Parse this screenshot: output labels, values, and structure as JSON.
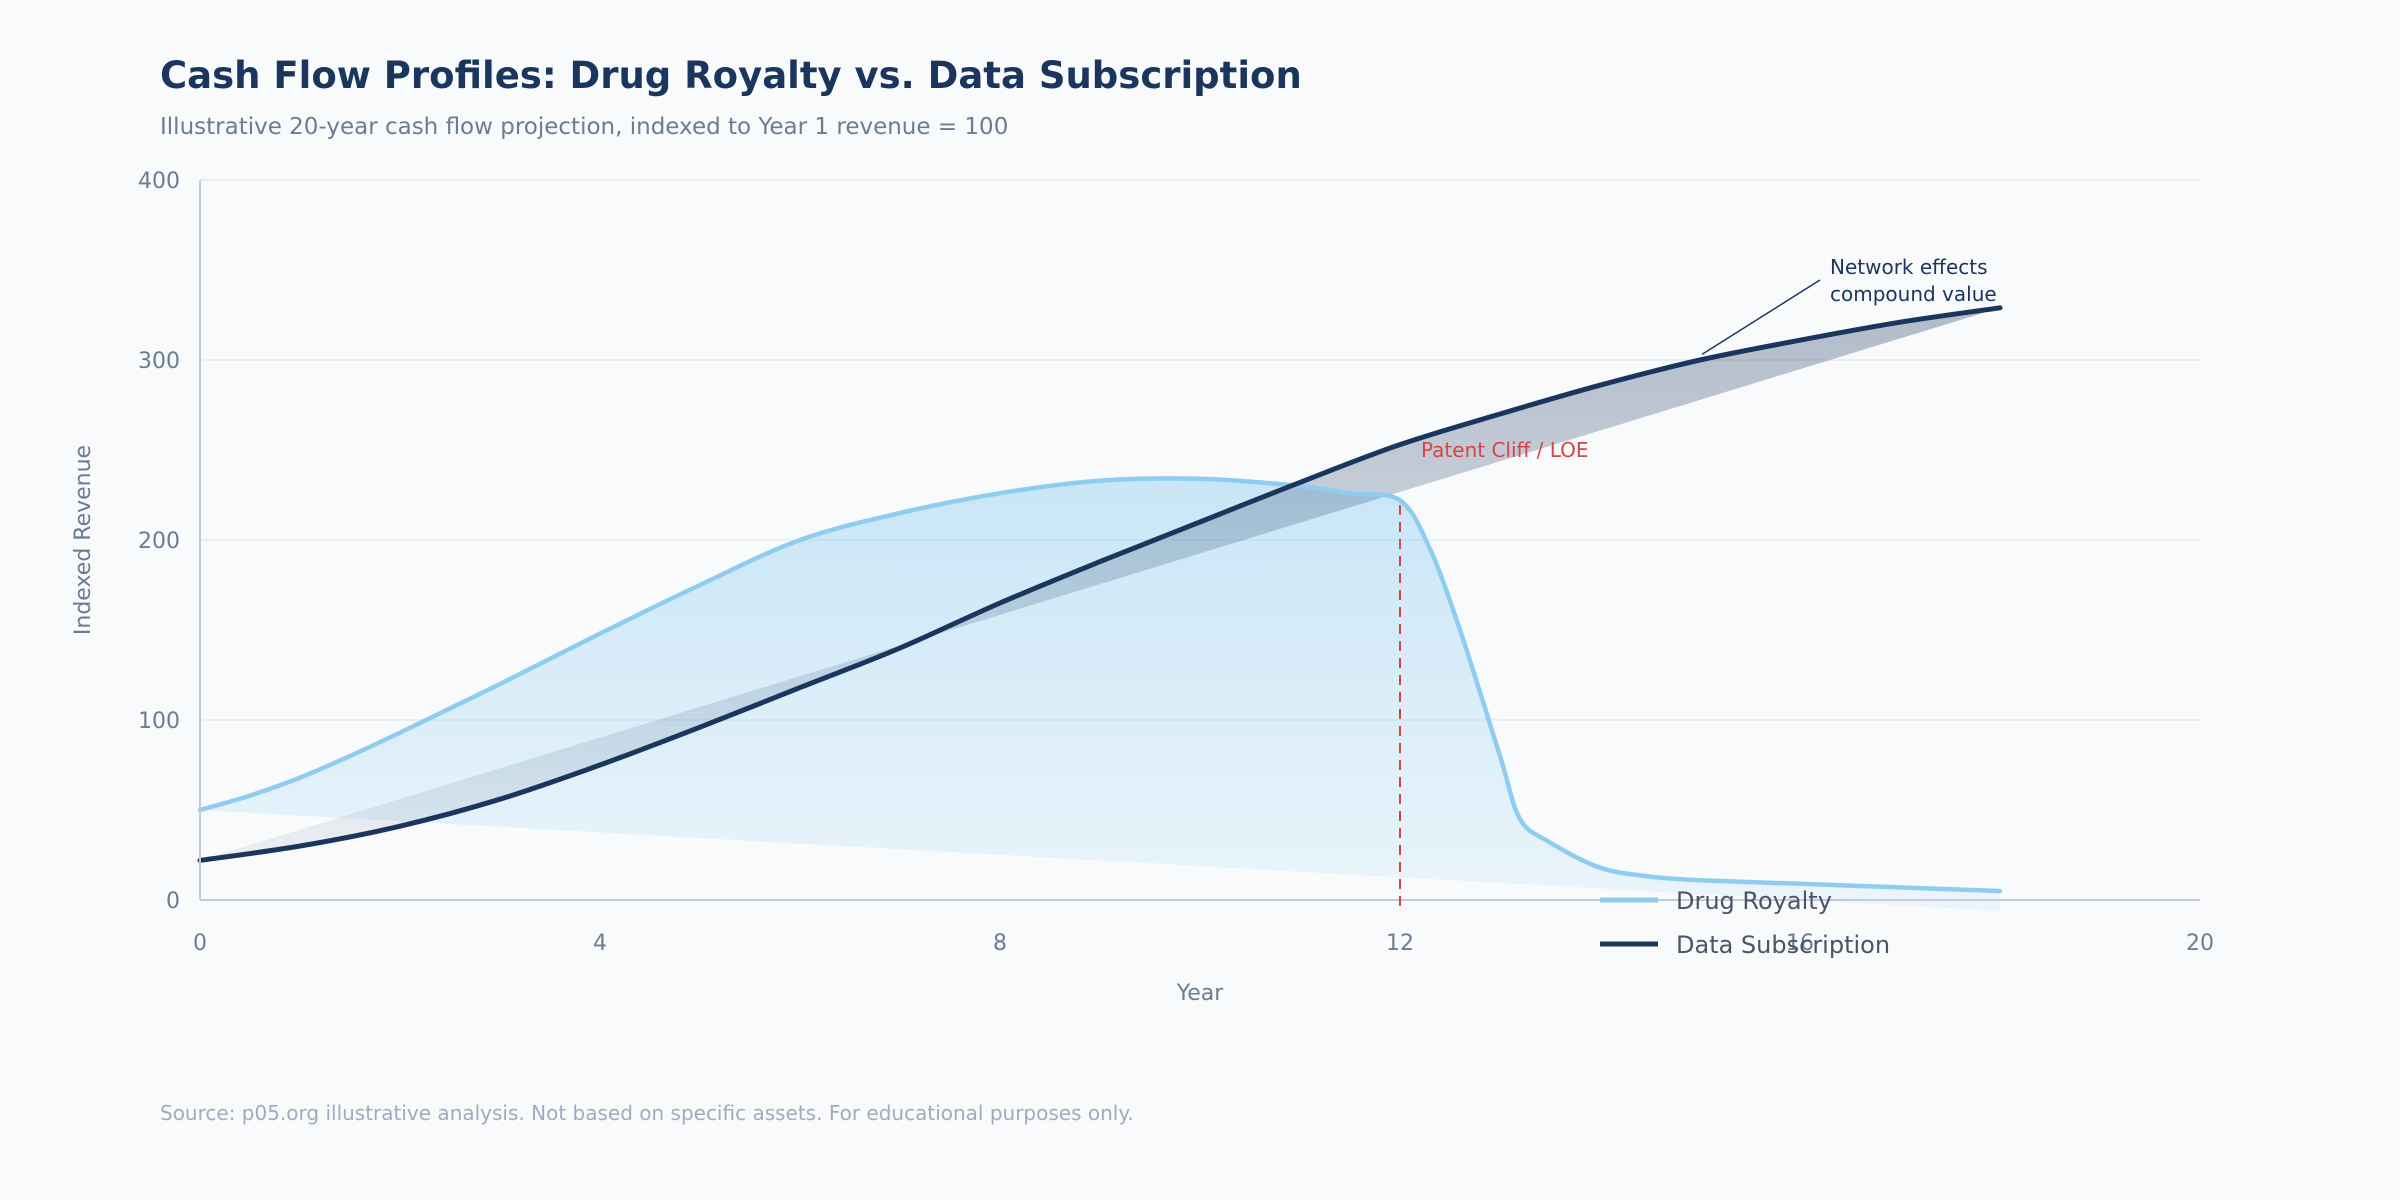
{
  "colors": {
    "royalty": "#8fcdf0",
    "subscription": "#1b365d",
    "cliff": "#d64545",
    "grid": "#e6eaf0",
    "axis": "#c3cbd6"
  },
  "header": {
    "title": "Cash Flow Profiles: Drug Royalty vs. Data Subscription",
    "subtitle": "Illustrative 20-year cash flow projection, indexed to Year 1 revenue = 100"
  },
  "footer": {
    "source": "Source: p05.org illustrative analysis. Not based on specific assets. For educational purposes only."
  },
  "chart_data": {
    "type": "line",
    "title": "Cash Flow Profiles: Drug Royalty vs. Data Subscription",
    "subtitle": "Illustrative 20-year cash flow projection, indexed to Year 1 revenue = 100",
    "xlabel": "Year",
    "ylabel": "Indexed Revenue",
    "xlim": [
      0,
      20
    ],
    "ylim": [
      0,
      400
    ],
    "xticks": [
      0,
      4,
      8,
      12,
      16,
      20
    ],
    "yticks": [
      0,
      100,
      200,
      300,
      400
    ],
    "grid": true,
    "legend_position": "bottom-right",
    "series": [
      {
        "name": "Drug Royalty",
        "color": "#8fcdf0",
        "x": [
          0,
          0.5,
          1,
          1.5,
          2,
          3,
          4,
          5,
          6,
          7,
          8,
          9,
          10,
          11,
          11.5,
          12,
          12.3,
          12.6,
          13,
          13.2,
          13.5,
          14,
          14.5,
          15,
          16,
          17,
          18
        ],
        "y": [
          50,
          58,
          68,
          80,
          93,
          120,
          148,
          175,
          200,
          215,
          226,
          233,
          234,
          230,
          226,
          222,
          195,
          150,
          80,
          45,
          32,
          18,
          13,
          11,
          9,
          7,
          5
        ]
      },
      {
        "name": "Data Subscription",
        "color": "#1b365d",
        "x": [
          0,
          1,
          2,
          3,
          4,
          5,
          6,
          7,
          8,
          9,
          10,
          11,
          12,
          13,
          14,
          15,
          16,
          17,
          18
        ],
        "y": [
          22,
          30,
          41,
          56,
          75,
          96,
          118,
          140,
          165,
          188,
          210,
          232,
          253,
          270,
          286,
          300,
          311,
          321,
          329
        ]
      }
    ],
    "annotations": [
      {
        "text": "Patent Cliff / LOE",
        "x": 12,
        "type": "vertical-line"
      },
      {
        "text_lines": [
          "Network effects",
          "compound value"
        ],
        "x": 15,
        "y": 302,
        "type": "arrow"
      }
    ]
  }
}
